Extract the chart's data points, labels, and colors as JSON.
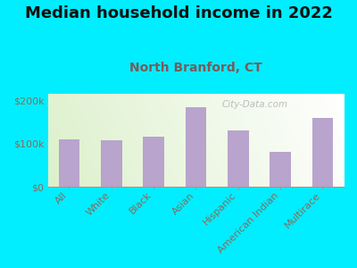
{
  "title": "Median household income in 2022",
  "subtitle": "North Branford, CT",
  "categories": [
    "All",
    "White",
    "Black",
    "Asian",
    "Hispanic",
    "American Indian",
    "Multirace"
  ],
  "values": [
    110000,
    108000,
    115000,
    185000,
    130000,
    80000,
    160000
  ],
  "bar_color": "#b8a4cc",
  "background_outer": "#00eeff",
  "background_inner": "#eaf5e0",
  "title_color": "#111111",
  "subtitle_color": "#7a5a5a",
  "tick_color": "#8a6a5a",
  "ytick_labels": [
    "$0",
    "$100k",
    "$200k"
  ],
  "ytick_values": [
    0,
    100000,
    200000
  ],
  "ylim": [
    0,
    215000
  ],
  "watermark": "City-Data.com",
  "title_fontsize": 13,
  "subtitle_fontsize": 10,
  "tick_fontsize": 8
}
